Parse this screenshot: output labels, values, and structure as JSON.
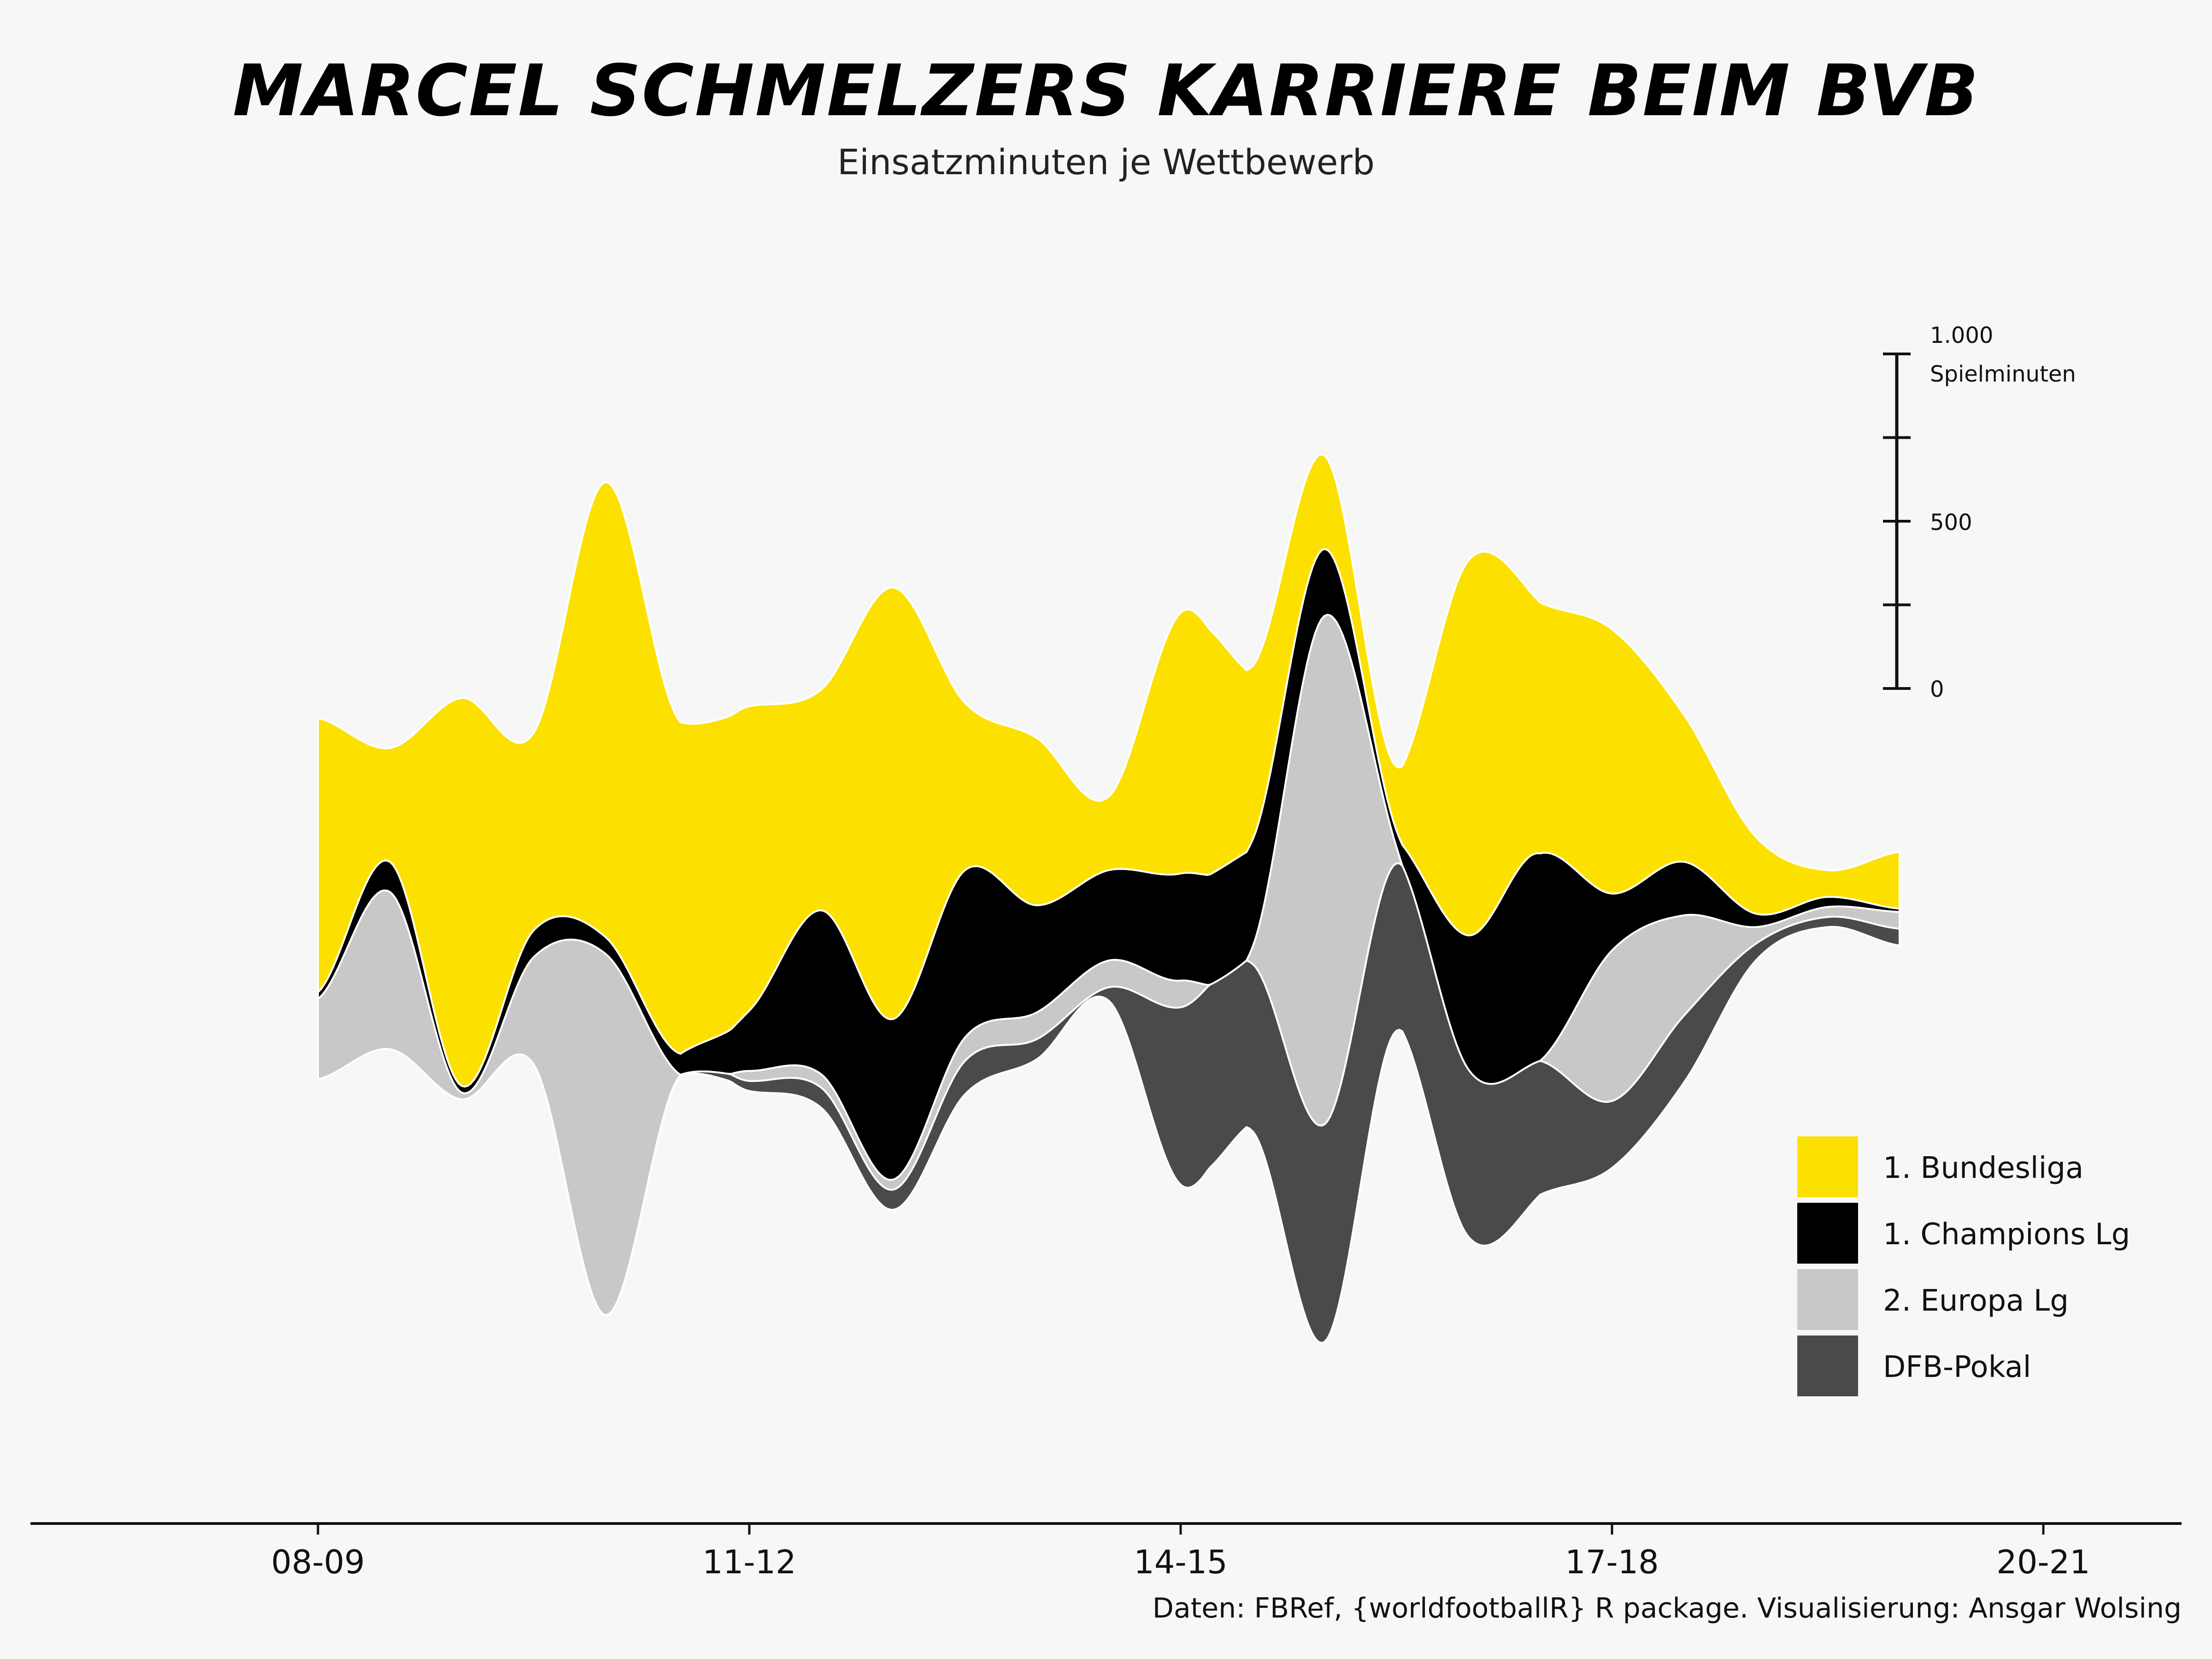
{
  "colors": {
    "background": "#f7f7f7",
    "bundesliga": "#fce100",
    "champions": "#000000",
    "europa": "#c8c8c8",
    "pokal": "#4a4a4a",
    "outline": "#ffffff",
    "axis": "#111111"
  },
  "header": {
    "title": "Marcel Schmelzers Karriere beim BVB",
    "subtitle": "Einsatzminuten je Wettbewerb"
  },
  "caption": "Daten: FBRef, {worldfootballR} R package. Visualisierung: Ansgar Wolsing",
  "scale_bar": {
    "top_label_value": "1.000",
    "top_label_unit": "Spielminuten",
    "mid_label": "500",
    "bottom_label": "0",
    "min": 0,
    "max": 1000,
    "ticks": [
      0,
      250,
      500,
      750,
      1000
    ]
  },
  "legend": {
    "items": [
      {
        "key": "bundesliga",
        "label": "1. Bundesliga"
      },
      {
        "key": "champions",
        "label": "1. Champions Lg"
      },
      {
        "key": "europa",
        "label": "2. Europa Lg"
      },
      {
        "key": "pokal",
        "label": "DFB-Pokal"
      }
    ]
  },
  "chart_data": {
    "type": "area",
    "subtype": "streamgraph",
    "title": "Marcel Schmelzers Karriere beim BVB",
    "subtitle": "Einsatzminuten je Wettbewerb",
    "x_tick_labels": [
      "08-09",
      "11-12",
      "14-15",
      "17-18",
      "20-21"
    ],
    "x_ticks_at_index": [
      0,
      6,
      12,
      18,
      24
    ],
    "x": [
      0,
      1,
      2,
      3,
      4,
      5,
      6,
      7,
      8,
      9,
      10,
      11,
      12,
      13,
      14,
      15,
      16,
      17,
      18,
      19,
      20,
      21,
      22
    ],
    "y_unit": "Spielminuten",
    "series": [
      {
        "name": "1. Bundesliga",
        "key": "bundesliga",
        "values": [
          820,
          340,
          1160,
          590,
          1360,
          1000,
          910,
          660,
          1290,
          500,
          500,
          220,
          780,
          520,
          280,
          190,
          1120,
          750,
          790,
          440,
          230,
          80,
          170
        ]
      },
      {
        "name": "1. Champions Lg",
        "key": "champions",
        "values": [
          20,
          90,
          20,
          80,
          50,
          60,
          180,
          490,
          480,
          500,
          320,
          270,
          320,
          320,
          200,
          50,
          400,
          620,
          170,
          160,
          40,
          30,
          10
        ]
      },
      {
        "name": "2. Europa Lg",
        "key": "europa",
        "values": [
          240,
          470,
          20,
          320,
          1080,
          20,
          30,
          40,
          30,
          70,
          80,
          80,
          80,
          50,
          1520,
          50,
          0,
          0,
          450,
          300,
          50,
          30,
          50
        ]
      },
      {
        "name": "DFB-Pokal",
        "key": "pokal",
        "values": [
          0,
          0,
          0,
          0,
          0,
          0,
          30,
          60,
          60,
          100,
          60,
          40,
          530,
          500,
          650,
          500,
          500,
          400,
          200,
          200,
          50,
          30,
          50
        ]
      }
    ]
  }
}
